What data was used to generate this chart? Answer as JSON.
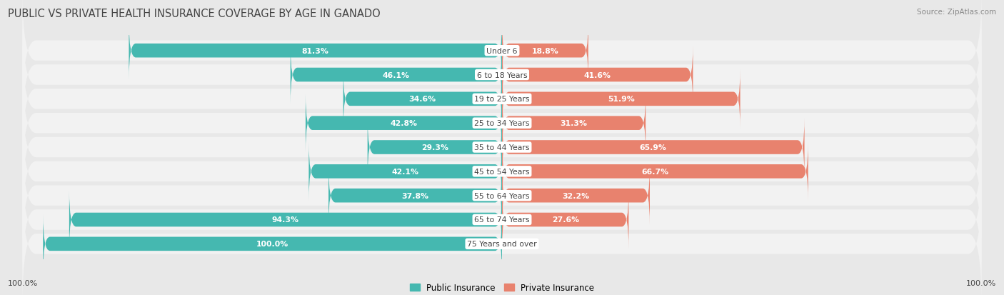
{
  "title": "PUBLIC VS PRIVATE HEALTH INSURANCE COVERAGE BY AGE IN GANADO",
  "source": "Source: ZipAtlas.com",
  "categories": [
    "Under 6",
    "6 to 18 Years",
    "19 to 25 Years",
    "25 to 34 Years",
    "35 to 44 Years",
    "45 to 54 Years",
    "55 to 64 Years",
    "65 to 74 Years",
    "75 Years and over"
  ],
  "public_values": [
    81.3,
    46.1,
    34.6,
    42.8,
    29.3,
    42.1,
    37.8,
    94.3,
    100.0
  ],
  "private_values": [
    18.8,
    41.6,
    51.9,
    31.3,
    65.9,
    66.7,
    32.2,
    27.6,
    0.0
  ],
  "public_color": "#45b8b0",
  "private_color": "#e8826e",
  "private_color_light": "#f0b0a0",
  "public_label": "Public Insurance",
  "private_label": "Private Insurance",
  "bg_color": "#e8e8e8",
  "row_bg": "#f2f2f2",
  "title_color": "#444444",
  "source_color": "#888888",
  "label_color": "#444444",
  "value_color_inside": "#ffffff",
  "value_color_outside": "#555555",
  "center_label_bg": "#ffffff",
  "x_axis_label": "100.0%",
  "bar_height": 0.58,
  "xlim": 105,
  "inside_threshold": 15
}
